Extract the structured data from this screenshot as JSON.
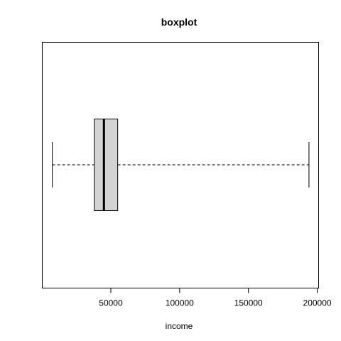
{
  "chart_data": {
    "type": "boxplot",
    "title": "boxplot",
    "xlabel": "income",
    "ylabel": "",
    "orientation": "horizontal",
    "xlim": [
      200,
      201000
    ],
    "ticks": [
      50000,
      100000,
      150000,
      200000
    ],
    "tick_labels": [
      "50000",
      "100000",
      "150000",
      "200000"
    ],
    "box": {
      "min": 7500,
      "q1": 38000,
      "median": 45000,
      "q3": 55000,
      "max": 194000
    },
    "box_fill": "#d3d3d3",
    "grid": false,
    "legend": "none"
  }
}
